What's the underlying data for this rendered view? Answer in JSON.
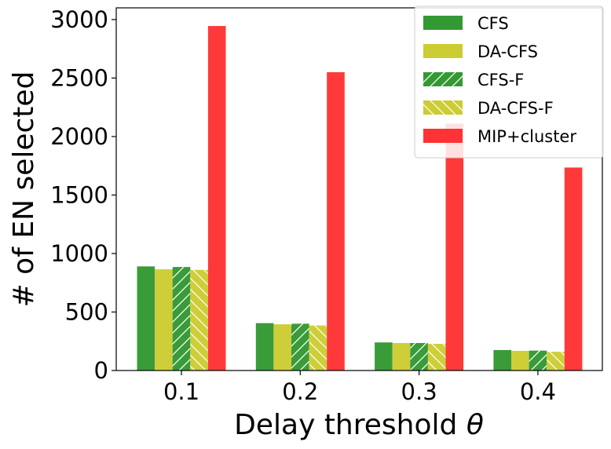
{
  "chart_data": {
    "type": "bar",
    "categories": [
      "0.1",
      "0.2",
      "0.3",
      "0.4"
    ],
    "series": [
      {
        "name": "CFS",
        "values": [
          890,
          405,
          240,
          175
        ],
        "color": "#339933",
        "hatch": "none"
      },
      {
        "name": "DA-CFS",
        "values": [
          865,
          395,
          235,
          168
        ],
        "color": "#cccc33",
        "hatch": "none"
      },
      {
        "name": "CFS-F",
        "values": [
          885,
          400,
          235,
          170
        ],
        "color": "#339933",
        "hatch": "forward-slash"
      },
      {
        "name": "DA-CFS-F",
        "values": [
          860,
          385,
          228,
          160
        ],
        "color": "#cccc33",
        "hatch": "back-slash"
      },
      {
        "name": "MIP+cluster",
        "values": [
          2945,
          2550,
          2110,
          1735
        ],
        "color": "#ff3333",
        "hatch": "none"
      }
    ],
    "xlabel_text": "Delay threshold ",
    "xlabel_symbol": "θ",
    "ylabel": "# of EN selected",
    "ylim": [
      0,
      3100
    ],
    "yticks": [
      "0",
      "500",
      "1000",
      "1500",
      "2000",
      "2500",
      "3000"
    ],
    "ytick_values": [
      0,
      500,
      1000,
      1500,
      2000,
      2500,
      3000
    ],
    "grid": false,
    "legend_position": "top-right"
  }
}
